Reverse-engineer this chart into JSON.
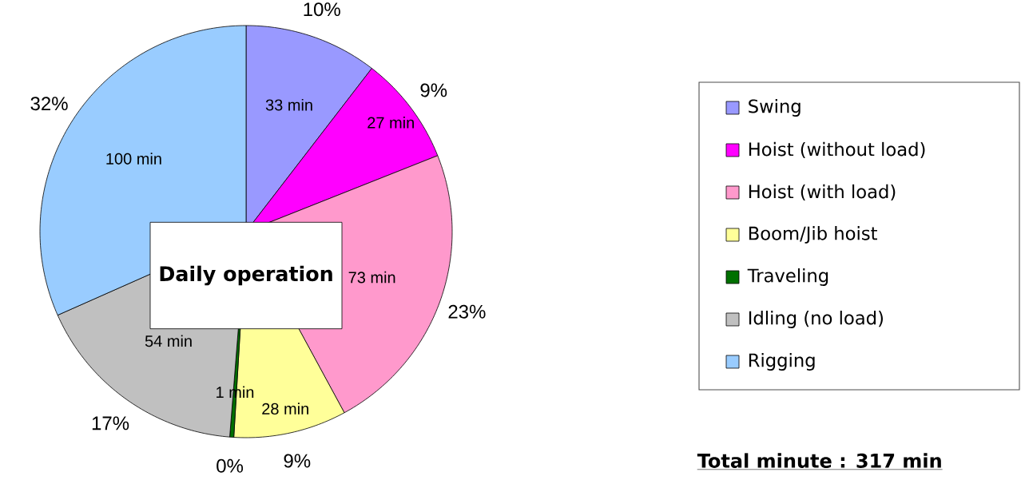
{
  "chart_data": {
    "type": "pie",
    "title": "Daily operation",
    "categories": [
      "Swing",
      "Hoist (without load)",
      "Hoist (with load)",
      "Boom/Jib hoist",
      "Traveling",
      "Idling (no load)",
      "Rigging"
    ],
    "values": [
      33,
      27,
      73,
      28,
      1,
      54,
      100
    ],
    "colors": [
      "#9999ff",
      "#ff00ff",
      "#ff99cc",
      "#ffff99",
      "#007000",
      "#c0c0c0",
      "#99ccff"
    ],
    "value_labels": [
      "33 min",
      "27 min",
      "73 min",
      "28 min",
      "1 min",
      "54 min",
      "100 min"
    ],
    "legend": "right",
    "annotations": [
      {
        "text": "10%",
        "x": "Swing"
      },
      {
        "text": "9%",
        "x": "Hoist (without load)"
      },
      {
        "text": "23%",
        "x": "Hoist (with load)"
      },
      {
        "text": "9%",
        "x": "Boom/Jib hoist"
      },
      {
        "text": "0%",
        "x": "Traveling"
      },
      {
        "text": "17%",
        "x": "Idling (no load)"
      },
      {
        "text": "32%",
        "x": "Rigging"
      },
      "Total minute : 317 min"
    ]
  }
}
